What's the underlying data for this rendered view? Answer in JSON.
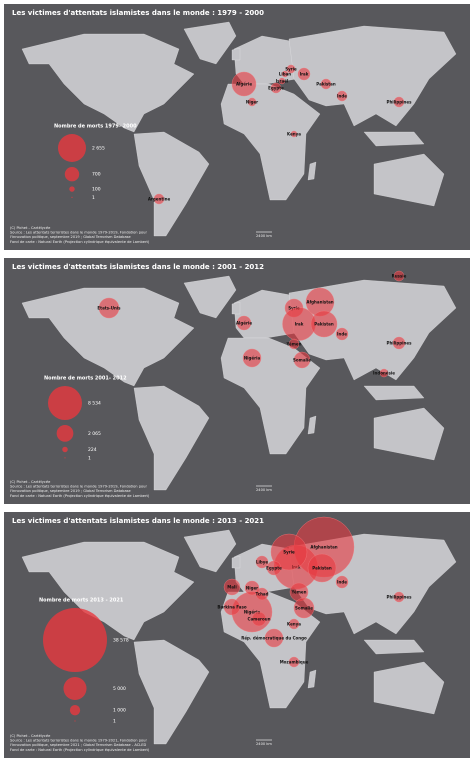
{
  "panels": [
    {
      "title": "Les victimes d'attentats islamistes dans le monde : 1979 - 2000",
      "legend": {
        "title": "Nombre de morts 1979- 2000",
        "entries": [
          {
            "value": 2655,
            "label": "2 655"
          },
          700,
          100,
          1
        ]
      },
      "bubbles": [
        {
          "label": "Algérie",
          "value": 1950
        },
        {
          "label": "Niger",
          "value": 220
        },
        {
          "label": "Egypte",
          "value": 340
        },
        {
          "label": "Liban",
          "value": 120
        },
        {
          "label": "Israël",
          "value": 120
        },
        {
          "label": "Syrie",
          "value": 220
        },
        {
          "label": "Irak",
          "value": 490
        },
        {
          "label": "Pakistan",
          "value": 340
        },
        {
          "label": "Inde",
          "value": 340
        },
        {
          "label": "Kenya",
          "value": 120
        },
        {
          "label": "Philippines",
          "value": 340
        },
        {
          "label": "Argentine",
          "value": 340
        }
      ],
      "scale": "2400 km",
      "source": [
        "(C) Pichet - Cartélycée",
        "Source : Les attentats terroristes dans le monde 1979-2019, Fondation pour",
        "l'innovation politique, septembre 2019 ; Global Terrorism Database",
        "Fond de carte : Natural Earth (Projection cylindrique équivalente de Lambert)"
      ]
    },
    {
      "title": "Les victimes d'attentats islamistes dans le monde : 2001 - 2012",
      "legend": {
        "title": "Nombre de morts 2001- 2012",
        "entries": [
          {
            "value": 8534,
            "label": "8 534"
          },
          {
            "value": 2065,
            "label": "2 065"
          },
          224,
          1
        ]
      },
      "bubbles": [
        {
          "label": "Etats-Unis",
          "value": 2950
        },
        {
          "label": "Russie",
          "value": 740
        },
        {
          "label": "Algérie",
          "value": 1450
        },
        {
          "label": "Syrie",
          "value": 2390
        },
        {
          "label": "Irak",
          "value": 8000
        },
        {
          "label": "Afghanistan",
          "value": 5800
        },
        {
          "label": "Pakistan",
          "value": 5000
        },
        {
          "label": "Inde",
          "value": 1060
        },
        {
          "label": "Yémen",
          "value": 740
        },
        {
          "label": "Somalie",
          "value": 1890
        },
        {
          "label": "Nigéria",
          "value": 2390
        },
        {
          "label": "Philippines",
          "value": 1060
        },
        {
          "label": "Indonésie",
          "value": 470
        }
      ],
      "scale": "2400 km",
      "source": [
        "(C) Pichet - Cartélycée",
        "Source : Les attentats terroristes dans le monde 1979-2019, Fondation pour",
        "l'innovation politique, septembre 2019 ; Global Terrorism Database",
        "Fond de carte : Natural Earth (Projection cylindrique équivalente de Lambert)"
      ]
    },
    {
      "title": "Les victimes d'attentats islamistes dans le monde : 2013 - 2021",
      "legend": {
        "title": "Nombre de morts 2013 - 2021",
        "entries": [
          {
            "value": 38578,
            "label": "38 578"
          },
          {
            "value": 5000,
            "label": "5 000"
          },
          {
            "value": 1000,
            "label": "1 000"
          },
          1
        ]
      },
      "bubbles": [
        {
          "label": "Afghanistan",
          "value": 33900
        },
        {
          "label": "Irak",
          "value": 18200
        },
        {
          "label": "Syrie",
          "value": 12200
        },
        {
          "label": "Pakistan",
          "value": 7400
        },
        {
          "label": "Nigéria",
          "value": 15100
        },
        {
          "label": "Libye",
          "value": 1360
        },
        {
          "label": "Egypte",
          "value": 1850
        },
        {
          "label": "Mali",
          "value": 2400
        },
        {
          "label": "Niger",
          "value": 1850
        },
        {
          "label": "Burkina Faso",
          "value": 2400
        },
        {
          "label": "Tchad",
          "value": 1360
        },
        {
          "label": "Cameroun",
          "value": 1850
        },
        {
          "label": "Yémen",
          "value": 3050
        },
        {
          "label": "Somalie",
          "value": 3770
        },
        {
          "label": "Kenya",
          "value": 940
        },
        {
          "label": "Rép. démocratique du Congo",
          "value": 3050
        },
        {
          "label": "Mozambique",
          "value": 940
        },
        {
          "label": "Inde",
          "value": 1360
        },
        {
          "label": "Philippines",
          "value": 940
        }
      ],
      "scale": "2400 km",
      "source": [
        "(C) Pichet - Cartélycée",
        "Source : Les attentats terroristes dans le monde 1979-2021, Fondation pour",
        "l'innovation politique, septembre 2021 ; Global Terrorism Database - ACLED",
        "Fond de carte : Natural Earth (Projection cylindrique équivalente de Lambert)"
      ]
    }
  ]
}
